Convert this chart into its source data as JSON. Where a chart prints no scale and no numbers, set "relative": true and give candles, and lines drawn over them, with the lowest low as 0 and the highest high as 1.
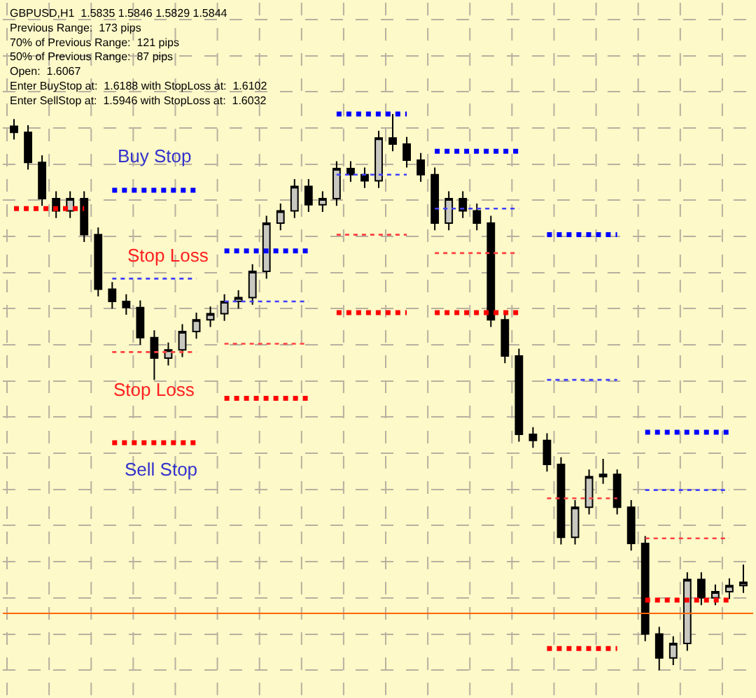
{
  "chart_data": {
    "type": "candlestick",
    "relative": true,
    "grid": true,
    "categories": [
      null,
      null,
      null,
      null,
      null,
      null,
      null,
      null,
      null,
      null,
      null,
      null,
      null,
      null,
      null,
      null,
      null,
      null,
      null,
      null,
      null,
      null,
      null,
      null,
      null,
      null,
      null,
      null,
      null,
      null,
      null,
      null,
      null,
      null,
      null,
      null,
      null,
      null,
      null,
      null,
      null,
      null,
      null,
      null,
      null,
      null,
      null,
      null,
      null,
      null,
      null,
      null,
      null
    ],
    "color": "#000000",
    "ohlc": [
      [
        0.978,
        0.991,
        0.954,
        0.967
      ],
      [
        0.967,
        0.98,
        0.9,
        0.913
      ],
      [
        0.913,
        0.926,
        0.835,
        0.848
      ],
      [
        0.848,
        0.861,
        0.813,
        0.826
      ],
      [
        0.826,
        0.861,
        0.813,
        0.848
      ],
      [
        0.848,
        0.861,
        0.77,
        0.783
      ],
      [
        0.783,
        0.796,
        0.672,
        0.685
      ],
      [
        0.685,
        0.698,
        0.65,
        0.663
      ],
      [
        0.663,
        0.676,
        0.639,
        0.652
      ],
      [
        0.652,
        0.665,
        0.585,
        0.598
      ],
      [
        0.598,
        0.611,
        0.522,
        0.561
      ],
      [
        0.561,
        0.589,
        0.548,
        0.576
      ],
      [
        0.576,
        0.622,
        0.563,
        0.609
      ],
      [
        0.609,
        0.643,
        0.596,
        0.63
      ],
      [
        0.63,
        0.654,
        0.617,
        0.641
      ],
      [
        0.641,
        0.676,
        0.628,
        0.663
      ],
      [
        0.663,
        0.683,
        0.65,
        0.67
      ],
      [
        0.67,
        0.73,
        0.657,
        0.717
      ],
      [
        0.717,
        0.817,
        0.704,
        0.804
      ],
      [
        0.804,
        0.839,
        0.791,
        0.826
      ],
      [
        0.826,
        0.883,
        0.813,
        0.87
      ],
      [
        0.87,
        0.883,
        0.824,
        0.837
      ],
      [
        0.837,
        0.861,
        0.824,
        0.848
      ],
      [
        0.848,
        0.915,
        0.835,
        0.902
      ],
      [
        0.902,
        0.915,
        0.878,
        0.891
      ],
      [
        0.891,
        0.904,
        0.867,
        0.88
      ],
      [
        0.88,
        0.97,
        0.867,
        0.957
      ],
      [
        0.957,
        1,
        0.933,
        0.946
      ],
      [
        0.946,
        0.959,
        0.904,
        0.917
      ],
      [
        0.917,
        0.93,
        0.878,
        0.891
      ],
      [
        0.891,
        0.904,
        0.791,
        0.804
      ],
      [
        0.804,
        0.861,
        0.791,
        0.848
      ],
      [
        0.848,
        0.861,
        0.813,
        0.826
      ],
      [
        0.826,
        0.839,
        0.791,
        0.804
      ],
      [
        0.804,
        0.817,
        0.617,
        0.63
      ],
      [
        0.63,
        0.643,
        0.552,
        0.565
      ],
      [
        0.565,
        0.578,
        0.411,
        0.424
      ],
      [
        0.424,
        0.437,
        0.4,
        0.413
      ],
      [
        0.413,
        0.426,
        0.357,
        0.37
      ],
      [
        0.37,
        0.383,
        0.226,
        0.239
      ],
      [
        0.239,
        0.306,
        0.226,
        0.293
      ],
      [
        0.293,
        0.361,
        0.28,
        0.348
      ],
      [
        0.348,
        0.38,
        0.335,
        0.352
      ],
      [
        0.352,
        0.361,
        0.28,
        0.293
      ],
      [
        0.293,
        0.306,
        0.215,
        0.228
      ],
      [
        0.228,
        0.241,
        0.052,
        0.065
      ],
      [
        0.065,
        0.078,
        0,
        0.022
      ],
      [
        0.022,
        0.061,
        0.009,
        0.048
      ],
      [
        0.048,
        0.176,
        0.035,
        0.163
      ],
      [
        0.163,
        0.176,
        0.117,
        0.13
      ],
      [
        0.13,
        0.154,
        0.117,
        0.141
      ],
      [
        0.141,
        0.165,
        0.128,
        0.152
      ],
      [
        0.152,
        0.19,
        0.139,
        0.158
      ]
    ],
    "series": [
      {
        "type": "line",
        "color": "#0000ff",
        "line_style": "dotted",
        "values": [
          null,
          null,
          null,
          null,
          null,
          null,
          null,
          0.863,
          0.863,
          0.863,
          0.863,
          0.863,
          0.863,
          0.863,
          null,
          0.754,
          0.754,
          0.754,
          0.754,
          0.754,
          0.754,
          0.754,
          null,
          1,
          1,
          1,
          1,
          1,
          1,
          null,
          0.933,
          0.933,
          0.933,
          0.933,
          0.933,
          0.933,
          0.933,
          null,
          0.783,
          0.783,
          0.783,
          0.783,
          0.783,
          0.783,
          null,
          0.428,
          0.428,
          0.428,
          0.428,
          0.428,
          0.428,
          0.428,
          null
        ]
      },
      {
        "type": "line",
        "color": "#4040ff",
        "line_style": "dotted",
        "values": [
          null,
          null,
          null,
          null,
          null,
          null,
          null,
          0.704,
          0.704,
          0.704,
          0.704,
          0.704,
          0.704,
          0.704,
          null,
          0.663,
          0.663,
          0.663,
          0.663,
          0.663,
          0.663,
          0.663,
          null,
          0.891,
          0.891,
          0.891,
          0.891,
          0.891,
          0.891,
          null,
          0.83,
          0.83,
          0.83,
          0.83,
          0.83,
          0.83,
          0.83,
          null,
          0.522,
          0.522,
          0.522,
          0.522,
          0.522,
          0.522,
          null,
          0.324,
          0.324,
          0.324,
          0.324,
          0.324,
          0.324,
          0.324,
          null
        ]
      },
      {
        "type": "line",
        "color": "#ff4040",
        "line_style": "dotted",
        "values": [
          null,
          null,
          null,
          null,
          null,
          null,
          null,
          0.572,
          0.572,
          0.572,
          0.572,
          0.572,
          0.572,
          0.572,
          null,
          0.587,
          0.587,
          0.587,
          0.587,
          0.587,
          0.587,
          0.587,
          null,
          0.783,
          0.783,
          0.783,
          0.783,
          0.783,
          0.783,
          null,
          0.75,
          0.75,
          0.75,
          0.75,
          0.75,
          0.75,
          0.75,
          null,
          0.309,
          0.309,
          0.309,
          0.309,
          0.309,
          0.309,
          null,
          0.237,
          0.237,
          0.237,
          0.237,
          0.237,
          0.237,
          0.237,
          null
        ]
      },
      {
        "type": "line",
        "color": "#ff0000",
        "line_style": "dotted",
        "values": [
          0.83,
          0.83,
          0.83,
          0.83,
          0.83,
          0.83,
          null,
          0.409,
          0.409,
          0.409,
          0.409,
          0.409,
          0.409,
          0.409,
          null,
          0.489,
          0.489,
          0.489,
          0.489,
          0.489,
          0.489,
          0.489,
          null,
          0.643,
          0.643,
          0.643,
          0.643,
          0.643,
          0.643,
          null,
          0.643,
          0.643,
          0.643,
          0.643,
          0.643,
          0.643,
          0.643,
          null,
          0.039,
          0.039,
          0.039,
          0.039,
          0.039,
          0.039,
          null,
          0.126,
          0.126,
          0.126,
          0.126,
          0.126,
          0.126,
          0.126,
          null
        ]
      }
    ],
    "ref_lines": [
      {
        "axis": "y",
        "value": 0.102,
        "color": "#ff6600"
      }
    ],
    "annotations": [
      "GBPUSD,H1  1.5835 1.5846 1.5829 1.5844",
      "Previous Range:  173 pips",
      "70% of Previous Range:  121 pips",
      "50% of Previous Range:  87 pips",
      "Open:  1.6067",
      "Enter BuyStop at:  1.6188 with StopLoss at:  1.6102",
      "Enter SellStop at:  1.5946 with StopLoss at:  1.6032",
      "Buy Stop",
      "Stop Loss",
      "Stop Loss",
      "Sell Stop"
    ]
  }
}
